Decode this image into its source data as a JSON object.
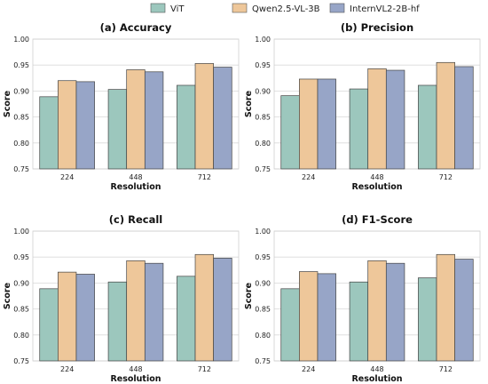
{
  "legend": [
    {
      "name": "ViT",
      "color": "#9cc7bd"
    },
    {
      "name": "Qwen2.5-VL-3B",
      "color": "#eec79a"
    },
    {
      "name": "InternVL2-2B-hf",
      "color": "#97a5c7"
    }
  ],
  "chart_data": [
    {
      "type": "bar",
      "title": "(a) Accuracy",
      "xlabel": "Resolution",
      "ylabel": "Score",
      "categories": [
        "224",
        "448",
        "712"
      ],
      "ylim": [
        0.75,
        1.0
      ],
      "yticks": [
        "0.75",
        "0.80",
        "0.85",
        "0.90",
        "0.95",
        "1.00"
      ],
      "grid": true,
      "series": [
        {
          "name": "ViT",
          "values": [
            0.889,
            0.903,
            0.911
          ]
        },
        {
          "name": "Qwen2.5-VL-3B",
          "values": [
            0.92,
            0.941,
            0.953
          ]
        },
        {
          "name": "InternVL2-2B-hf",
          "values": [
            0.918,
            0.937,
            0.946
          ]
        }
      ]
    },
    {
      "type": "bar",
      "title": "(b) Precision",
      "xlabel": "Resolution",
      "ylabel": "Score",
      "categories": [
        "224",
        "448",
        "712"
      ],
      "ylim": [
        0.75,
        1.0
      ],
      "yticks": [
        "0.75",
        "0.80",
        "0.85",
        "0.90",
        "0.95",
        "1.00"
      ],
      "grid": true,
      "series": [
        {
          "name": "ViT",
          "values": [
            0.891,
            0.904,
            0.911
          ]
        },
        {
          "name": "Qwen2.5-VL-3B",
          "values": [
            0.923,
            0.943,
            0.955
          ]
        },
        {
          "name": "InternVL2-2B-hf",
          "values": [
            0.923,
            0.94,
            0.947
          ]
        }
      ]
    },
    {
      "type": "bar",
      "title": "(c) Recall",
      "xlabel": "Resolution",
      "ylabel": "Score",
      "categories": [
        "224",
        "448",
        "712"
      ],
      "ylim": [
        0.75,
        1.0
      ],
      "yticks": [
        "0.75",
        "0.80",
        "0.85",
        "0.90",
        "0.95",
        "1.00"
      ],
      "grid": true,
      "series": [
        {
          "name": "ViT",
          "values": [
            0.889,
            0.902,
            0.913
          ]
        },
        {
          "name": "Qwen2.5-VL-3B",
          "values": [
            0.921,
            0.943,
            0.955
          ]
        },
        {
          "name": "InternVL2-2B-hf",
          "values": [
            0.917,
            0.938,
            0.948
          ]
        }
      ]
    },
    {
      "type": "bar",
      "title": "(d) F1-Score",
      "xlabel": "Resolution",
      "ylabel": "Score",
      "categories": [
        "224",
        "448",
        "712"
      ],
      "ylim": [
        0.75,
        1.0
      ],
      "yticks": [
        "0.75",
        "0.80",
        "0.85",
        "0.90",
        "0.95",
        "1.00"
      ],
      "grid": true,
      "series": [
        {
          "name": "ViT",
          "values": [
            0.889,
            0.902,
            0.91
          ]
        },
        {
          "name": "Qwen2.5-VL-3B",
          "values": [
            0.922,
            0.943,
            0.955
          ]
        },
        {
          "name": "InternVL2-2B-hf",
          "values": [
            0.918,
            0.938,
            0.946
          ]
        }
      ]
    }
  ]
}
